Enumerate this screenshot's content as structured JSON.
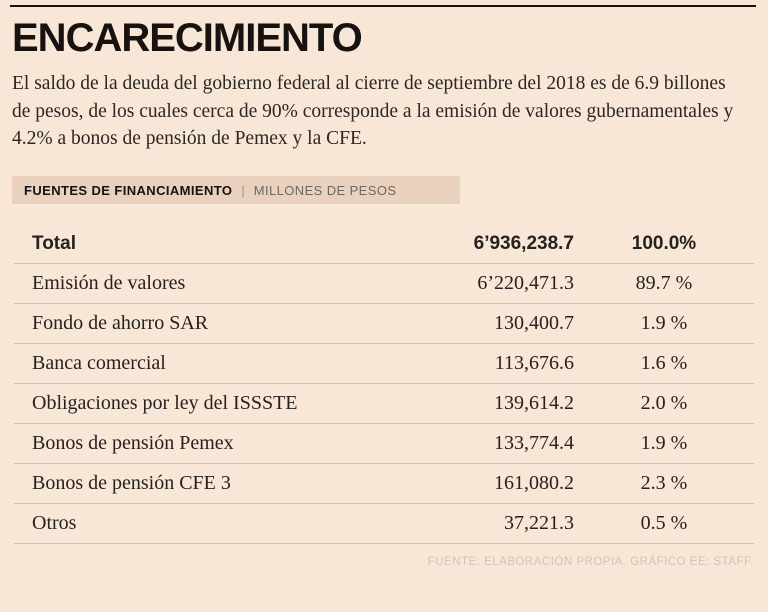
{
  "colors": {
    "background": "#f8e6d6",
    "band_background": "#ead1be",
    "rule": "#17120f",
    "row_line": "#cfc0b2",
    "footer_text": "#cdc5bc"
  },
  "header": {
    "title": "ENCARECIMIENTO",
    "intro": "El saldo de la deuda del gobierno federal al cierre de septiembre del 2018 es de 6.9 billones de pesos, de los cuales cerca de 90% corresponde a la emisión de valores gubernamentales y 4.2% a bonos de pensión de Pemex y la CFE."
  },
  "section": {
    "label": "FUENTES DE FINANCIAMIENTO",
    "separator": "|",
    "units": "MILLONES DE PESOS"
  },
  "table": {
    "total": {
      "label": "Total",
      "value": "6’936,238.7",
      "percent": "100.0%"
    },
    "rows": [
      {
        "label": "Emisión de valores",
        "value": "6’220,471.3",
        "percent": "89.7 %"
      },
      {
        "label": "Fondo de ahorro SAR",
        "value": "130,400.7",
        "percent": "1.9 %"
      },
      {
        "label": "Banca comercial",
        "value": "113,676.6",
        "percent": "1.6 %"
      },
      {
        "label": "Obligaciones por ley del ISSSTE",
        "value": "139,614.2",
        "percent": "2.0 %"
      },
      {
        "label": "Bonos de pensión Pemex",
        "value": "133,774.4",
        "percent": "1.9 %"
      },
      {
        "label": "Bonos de pensión CFE 3",
        "value": "161,080.2",
        "percent": "2.3 %"
      },
      {
        "label": "Otros",
        "value": "37,221.3",
        "percent": "0.5 %"
      }
    ]
  },
  "footer": {
    "source": "FUENTE: ELABORACIÓN PROPIA.  GRÁFICO EE: STAFF."
  },
  "chart_data": {
    "type": "table",
    "title": "ENCARECIMIENTO",
    "subtitle": "FUENTES DE FINANCIAMIENTO | MILLONES DE PESOS",
    "categories": [
      "Total",
      "Emisión de valores",
      "Fondo de ahorro SAR",
      "Banca comercial",
      "Obligaciones por ley del ISSSTE",
      "Bonos de pensión Pemex",
      "Bonos de pensión CFE 3",
      "Otros"
    ],
    "series": [
      {
        "name": "Millones de pesos",
        "values": [
          6936238.7,
          6220471.3,
          130400.7,
          113676.6,
          139614.2,
          133774.4,
          161080.2,
          37221.3
        ]
      },
      {
        "name": "Porcentaje",
        "values": [
          100.0,
          89.7,
          1.9,
          1.6,
          2.0,
          1.9,
          2.3,
          0.5
        ]
      }
    ],
    "annotations": [
      "FUENTE: ELABORACIÓN PROPIA. GRÁFICO EE: STAFF."
    ]
  }
}
